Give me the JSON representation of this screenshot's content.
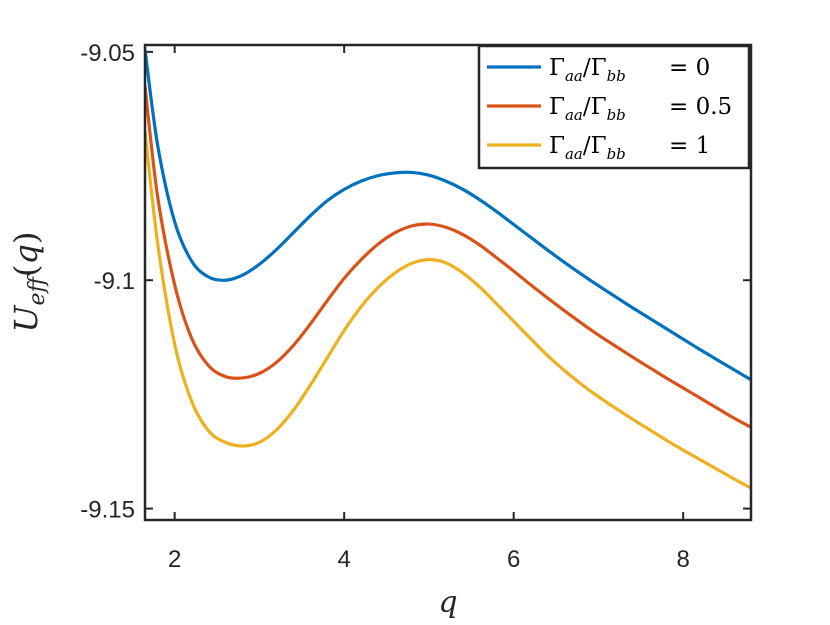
{
  "chart_data": {
    "type": "line",
    "title": "",
    "xlabel": "q",
    "ylabel": "U_eff(q)",
    "xlim": [
      1.65,
      8.8
    ],
    "ylim": [
      -9.1525,
      -9.0485
    ],
    "xticks": [
      2,
      4,
      6,
      8
    ],
    "xtick_labels": [
      "2",
      "4",
      "6",
      "8"
    ],
    "yticks": [
      -9.05,
      -9.1,
      -9.15
    ],
    "ytick_labels": [
      "-9.05",
      "-9.1",
      "-9.15"
    ],
    "grid": false,
    "legend_position": "top-right",
    "x": [
      1.65,
      1.8,
      2.0,
      2.2,
      2.4,
      2.6,
      2.8,
      3.0,
      3.2,
      3.4,
      3.6,
      3.8,
      4.0,
      4.2,
      4.4,
      4.6,
      4.8,
      5.0,
      5.2,
      5.4,
      5.6,
      5.8,
      6.0,
      6.2,
      6.4,
      6.6,
      6.8,
      7.0,
      7.2,
      7.4,
      7.6,
      7.8,
      8.0,
      8.2,
      8.4,
      8.6,
      8.8
    ],
    "series": [
      {
        "name_prefix": "Γ",
        "name_sub1": "aa",
        "name_mid": "/Γ",
        "name_sub2": "bb",
        "name_value": "= 0",
        "color": "#0072BD",
        "values": [
          -9.0495,
          -9.0705,
          -9.0872,
          -9.0958,
          -9.0993,
          -9.1,
          -9.0989,
          -9.0965,
          -9.0933,
          -9.0896,
          -9.0859,
          -9.0826,
          -9.0801,
          -9.0783,
          -9.0771,
          -9.0765,
          -9.0764,
          -9.077,
          -9.0783,
          -9.0801,
          -9.0824,
          -9.085,
          -9.0878,
          -9.0906,
          -9.0934,
          -9.0961,
          -9.0987,
          -9.1012,
          -9.1036,
          -9.106,
          -9.1083,
          -9.1106,
          -9.1129,
          -9.1152,
          -9.1174,
          -9.1196,
          -9.1218
        ]
      },
      {
        "name_prefix": "Γ",
        "name_sub1": "aa",
        "name_mid": "/Γ",
        "name_sub2": "bb",
        "name_value": "= 0.5",
        "color": "#D95319",
        "values": [
          -9.0575,
          -9.0818,
          -9.101,
          -9.1127,
          -9.1187,
          -9.1211,
          -9.1214,
          -9.1204,
          -9.118,
          -9.1143,
          -9.1096,
          -9.1045,
          -9.0996,
          -9.0955,
          -9.0921,
          -9.0896,
          -9.0881,
          -9.0877,
          -9.0884,
          -9.09,
          -9.0923,
          -9.0951,
          -9.098,
          -9.101,
          -9.1039,
          -9.1067,
          -9.1094,
          -9.112,
          -9.1144,
          -9.1168,
          -9.1191,
          -9.1214,
          -9.1236,
          -9.1258,
          -9.128,
          -9.1302,
          -9.1322
        ]
      },
      {
        "name_prefix": "Γ",
        "name_sub1": "aa",
        "name_mid": "/Γ",
        "name_sub2": "bb",
        "name_value": "= 1",
        "color": "#EDB120",
        "values": [
          -9.0675,
          -9.092,
          -9.114,
          -9.1265,
          -9.133,
          -9.1355,
          -9.1363,
          -9.1355,
          -9.1328,
          -9.1285,
          -9.123,
          -9.117,
          -9.111,
          -9.1058,
          -9.1016,
          -9.0984,
          -9.0963,
          -9.0955,
          -9.0962,
          -9.0984,
          -9.1015,
          -9.1052,
          -9.109,
          -9.1128,
          -9.1165,
          -9.1198,
          -9.1228,
          -9.1255,
          -9.128,
          -9.1304,
          -9.1327,
          -9.135,
          -9.1372,
          -9.1393,
          -9.1414,
          -9.1435,
          -9.1455
        ]
      }
    ]
  }
}
